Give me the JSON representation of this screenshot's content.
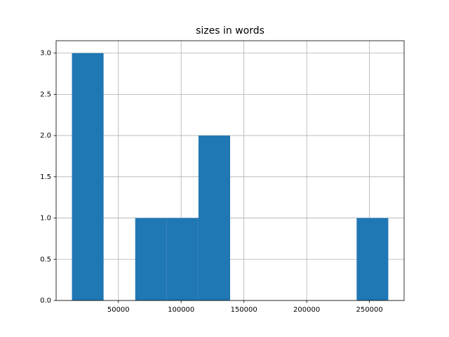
{
  "chart_data": {
    "type": "histogram",
    "title": "sizes in words",
    "bins": [
      13000,
      38200,
      63400,
      88600,
      113800,
      139000,
      164200,
      189400,
      214600,
      239800,
      265000
    ],
    "counts": [
      3,
      0,
      1,
      1,
      2,
      0,
      0,
      0,
      0,
      1
    ],
    "color": "#1f77b4",
    "xlim": [
      400,
      277600
    ],
    "xticks": [
      50000,
      100000,
      150000,
      200000,
      250000
    ],
    "ylim": [
      0,
      3.15
    ],
    "yticks": [
      {
        "value": 0,
        "label": "0.0"
      },
      0.5,
      {
        "value": 1,
        "label": "1.0"
      },
      1.5,
      {
        "value": 2,
        "label": "2.0"
      },
      2.5,
      {
        "value": 3,
        "label": "3.0"
      }
    ],
    "grid": true
  }
}
